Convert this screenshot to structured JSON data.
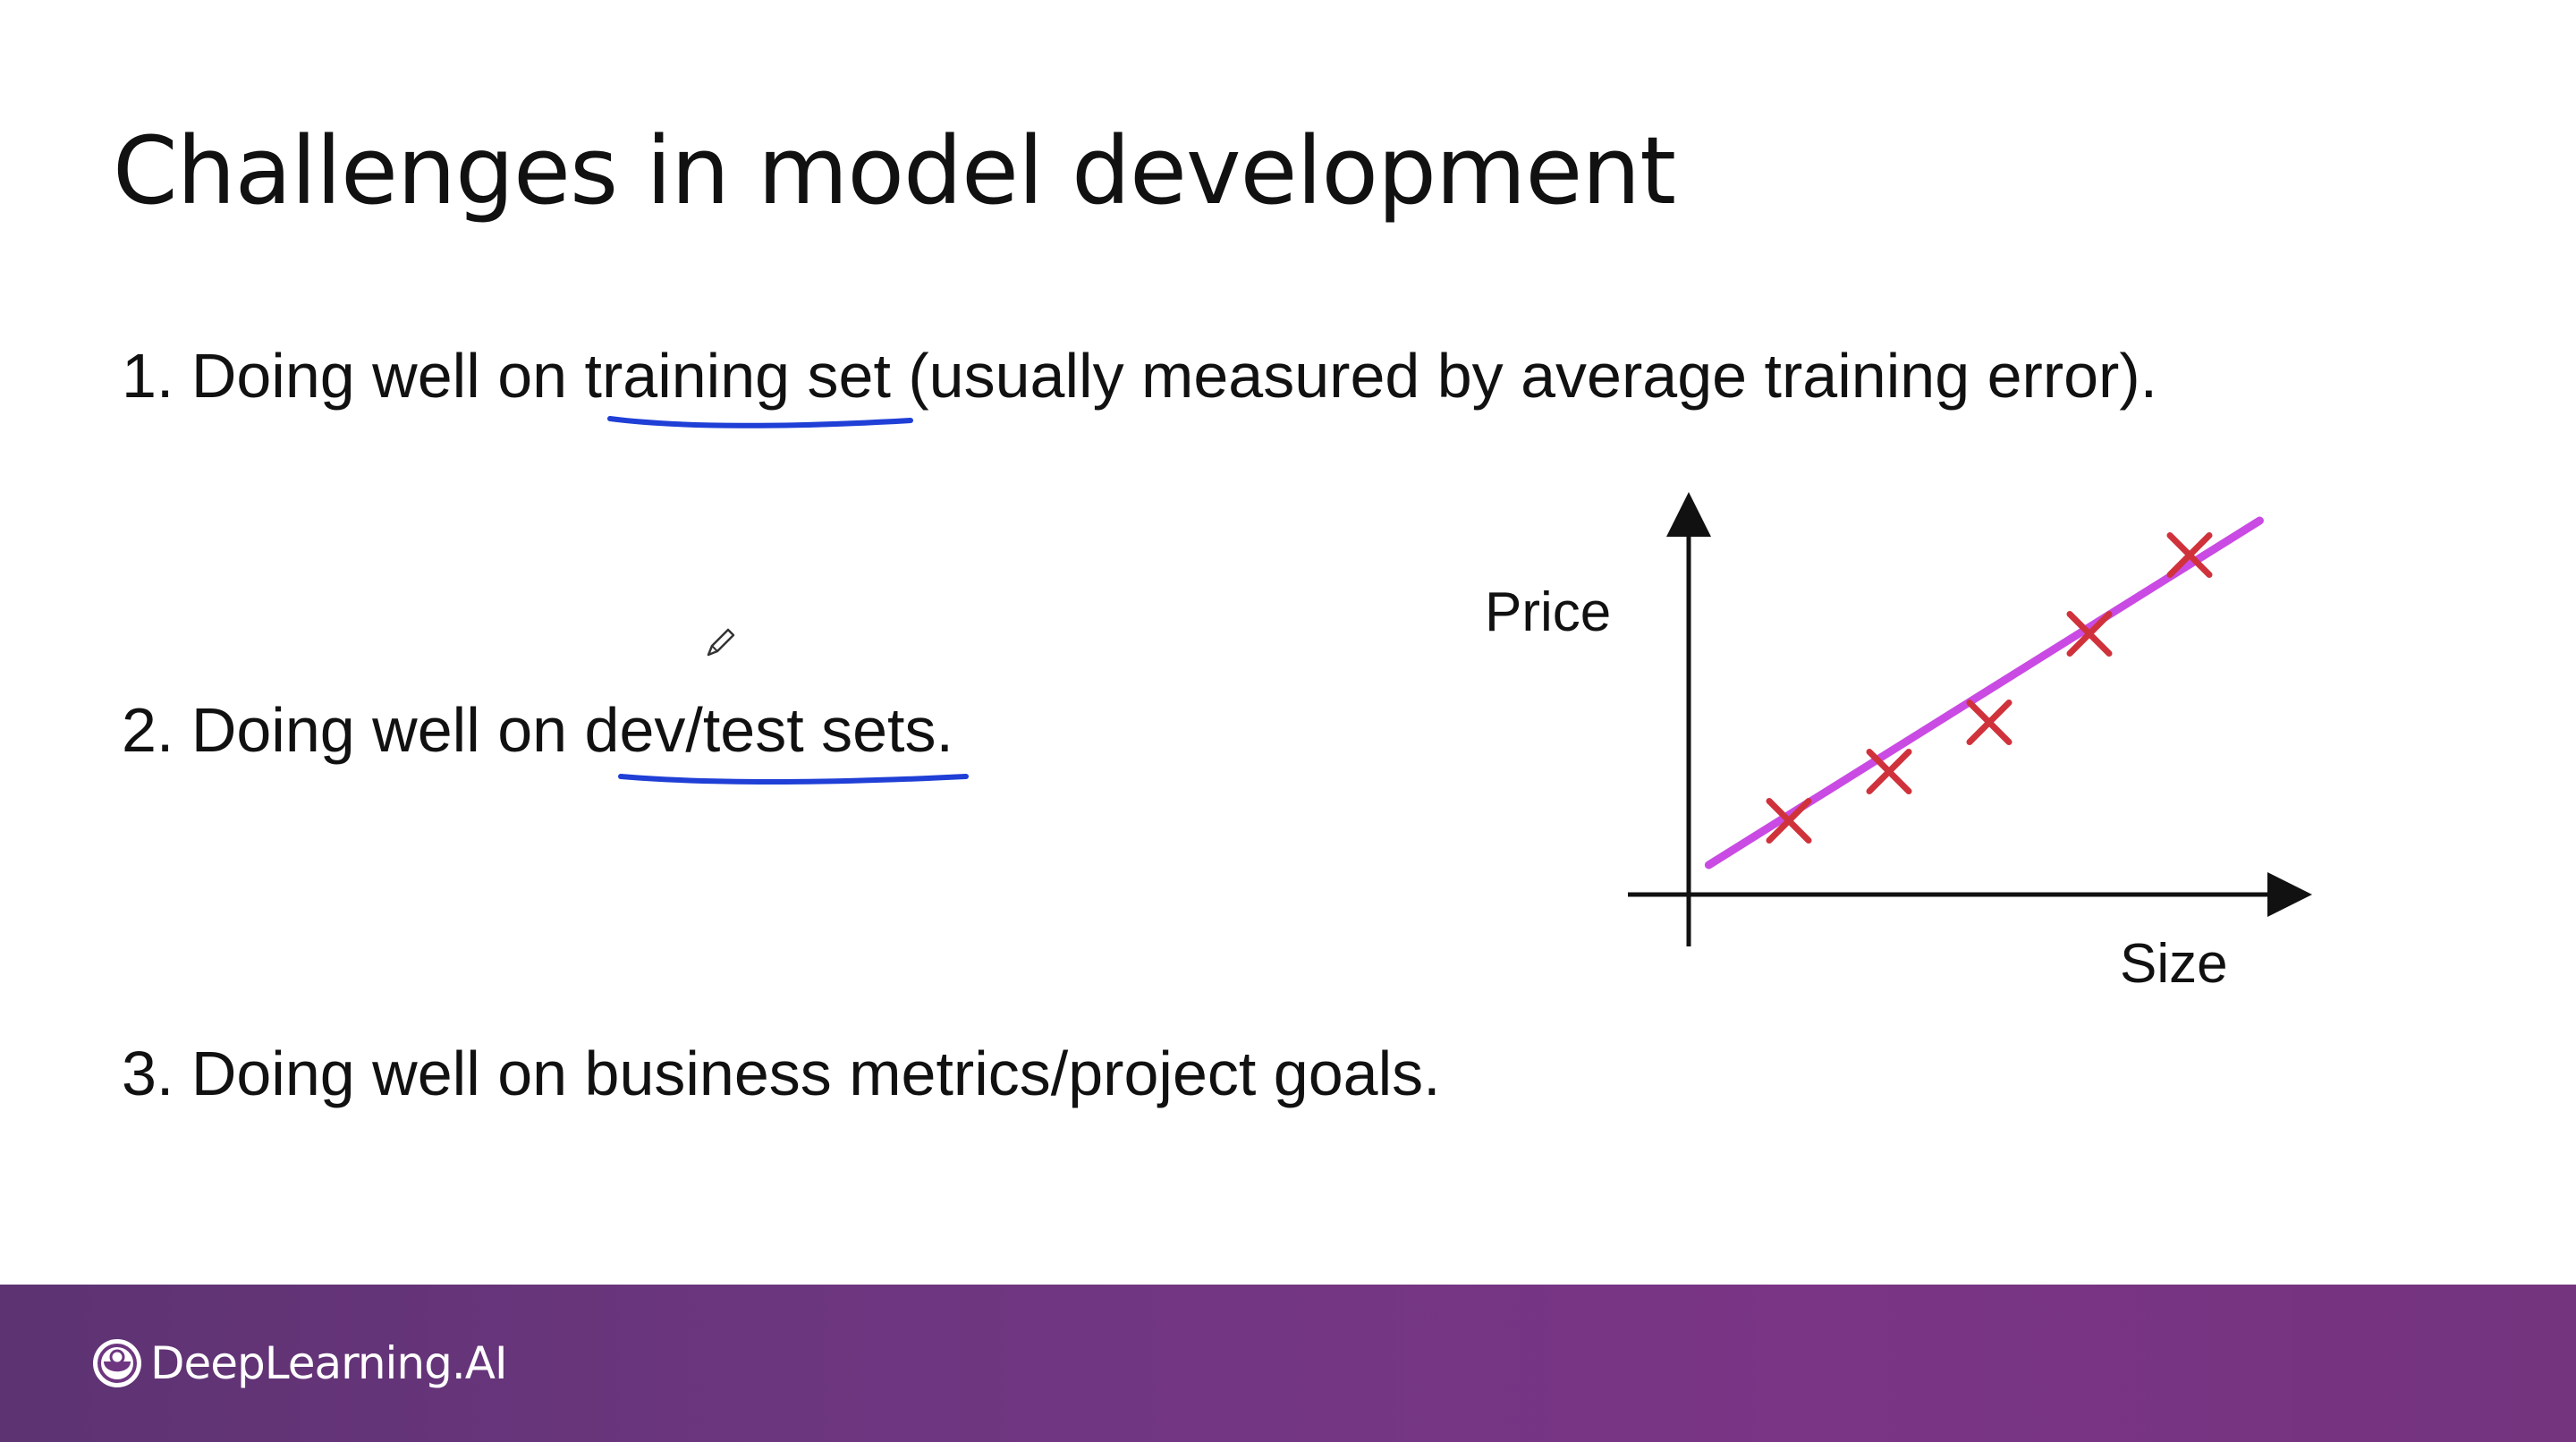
{
  "slide": {
    "title": "Challenges in model development",
    "points": [
      "1. Doing well on training set (usually measured by average training error).",
      "2. Doing well on dev/test sets.",
      "3. Doing well on business metrics/project goals."
    ],
    "annotation_color": "#1f3fd6",
    "pencil_cursor_icon": "pencil-cursor-icon"
  },
  "chart_data": {
    "type": "scatter",
    "xlabel": "Size",
    "ylabel": "Price",
    "points": [
      {
        "x": 1,
        "y": 1.5
      },
      {
        "x": 2,
        "y": 2.5
      },
      {
        "x": 3,
        "y": 3.5
      },
      {
        "x": 4,
        "y": 5.3
      },
      {
        "x": 5,
        "y": 6.9
      }
    ],
    "fit_line": {
      "x": [
        0.2,
        5.7
      ],
      "y": [
        0.6,
        7.6
      ]
    },
    "xlim": [
      0,
      6
    ],
    "ylim": [
      0,
      8
    ],
    "ticks_shown": false,
    "grid": false,
    "marker_color": "#d0323c",
    "line_color": "#c94be3"
  },
  "footer": {
    "brand_name": "DeepLearning.AI",
    "brand_icon": "deeplearning-ai-logo-icon",
    "background": "#6d347f"
  }
}
